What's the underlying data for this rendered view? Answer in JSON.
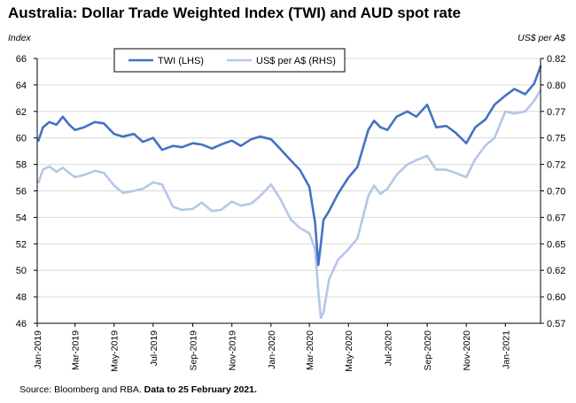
{
  "title": "Australia: Dollar Trade Weighted Index (TWI) and AUD spot rate",
  "left_unit": "Index",
  "right_unit": "US$ per A$",
  "source": {
    "prefix": "Source: Bloomberg and RBA.",
    "note": "Data to 25 February 2021."
  },
  "colors": {
    "twi": "#4472c4",
    "aud": "#b4c7e7",
    "grid": "#d9d9d9",
    "axis": "#000000"
  },
  "chart_data": {
    "type": "line",
    "grid": "horizontal",
    "legend_position": "top-center",
    "y_left": {
      "label": "Index",
      "range": [
        46,
        66
      ],
      "ticks": [
        "46",
        "48",
        "50",
        "52",
        "54",
        "56",
        "58",
        "60",
        "62",
        "64",
        "66"
      ]
    },
    "y_right": {
      "label": "US$ per A$",
      "range": [
        0.57,
        0.82
      ],
      "ticks": [
        "0.57",
        "0.60",
        "0.62",
        "0.65",
        "0.67",
        "0.70",
        "0.72",
        "0.75",
        "0.77",
        "0.80",
        "0.82"
      ]
    },
    "x_range": [
      "2019-01-01",
      "2021-02-25"
    ],
    "x_ticks": [
      "Jan-2019",
      "Mar-2019",
      "May-2019",
      "Jul-2019",
      "Sep-2019",
      "Nov-2019",
      "Jan-2020",
      "Mar-2020",
      "May-2020",
      "Jul-2020",
      "Sep-2020",
      "Nov-2020",
      "Jan-2021"
    ],
    "series": [
      {
        "name": "TWI (LHS)",
        "axis": "left",
        "x": [
          "2019-01-03",
          "2019-01-10",
          "2019-01-20",
          "2019-01-31",
          "2019-02-10",
          "2019-02-20",
          "2019-03-01",
          "2019-03-15",
          "2019-04-01",
          "2019-04-15",
          "2019-05-01",
          "2019-05-15",
          "2019-06-01",
          "2019-06-15",
          "2019-07-01",
          "2019-07-15",
          "2019-08-01",
          "2019-08-15",
          "2019-09-01",
          "2019-09-15",
          "2019-10-01",
          "2019-10-15",
          "2019-11-01",
          "2019-11-15",
          "2019-12-01",
          "2019-12-15",
          "2020-01-01",
          "2020-01-15",
          "2020-02-01",
          "2020-02-15",
          "2020-03-01",
          "2020-03-10",
          "2020-03-15",
          "2020-03-19",
          "2020-03-23",
          "2020-04-01",
          "2020-04-15",
          "2020-05-01",
          "2020-05-15",
          "2020-06-01",
          "2020-06-10",
          "2020-06-20",
          "2020-07-01",
          "2020-07-15",
          "2020-08-01",
          "2020-08-15",
          "2020-09-01",
          "2020-09-15",
          "2020-10-01",
          "2020-10-15",
          "2020-11-01",
          "2020-11-15",
          "2020-12-01",
          "2020-12-15",
          "2021-01-01",
          "2021-01-15",
          "2021-02-01",
          "2021-02-15",
          "2021-02-25"
        ],
        "y": [
          59.8,
          60.8,
          61.2,
          61.0,
          61.6,
          61.0,
          60.6,
          60.8,
          61.2,
          61.1,
          60.3,
          60.1,
          60.3,
          59.7,
          60.0,
          59.1,
          59.4,
          59.3,
          59.6,
          59.5,
          59.2,
          59.5,
          59.8,
          59.4,
          59.9,
          60.1,
          59.9,
          59.2,
          58.3,
          57.6,
          56.3,
          53.6,
          50.4,
          52.0,
          53.8,
          54.5,
          55.8,
          57.0,
          57.8,
          60.6,
          61.3,
          60.8,
          60.6,
          61.6,
          62.0,
          61.6,
          62.5,
          60.8,
          60.9,
          60.4,
          59.6,
          60.8,
          61.4,
          62.5,
          63.2,
          63.7,
          63.3,
          64.1,
          65.4
        ]
      },
      {
        "name": "US$ per A$ (RHS)",
        "axis": "right",
        "x": [
          "2019-01-03",
          "2019-01-10",
          "2019-01-20",
          "2019-01-31",
          "2019-02-10",
          "2019-02-20",
          "2019-03-01",
          "2019-03-15",
          "2019-04-01",
          "2019-04-15",
          "2019-05-01",
          "2019-05-15",
          "2019-06-01",
          "2019-06-15",
          "2019-07-01",
          "2019-07-15",
          "2019-08-01",
          "2019-08-15",
          "2019-09-01",
          "2019-09-15",
          "2019-10-01",
          "2019-10-15",
          "2019-11-01",
          "2019-11-15",
          "2019-12-01",
          "2019-12-15",
          "2020-01-01",
          "2020-01-15",
          "2020-02-01",
          "2020-02-15",
          "2020-03-01",
          "2020-03-10",
          "2020-03-15",
          "2020-03-19",
          "2020-03-23",
          "2020-04-01",
          "2020-04-15",
          "2020-05-01",
          "2020-05-15",
          "2020-06-01",
          "2020-06-10",
          "2020-06-20",
          "2020-07-01",
          "2020-07-15",
          "2020-08-01",
          "2020-08-15",
          "2020-09-01",
          "2020-09-15",
          "2020-10-01",
          "2020-10-15",
          "2020-11-01",
          "2020-11-15",
          "2020-12-01",
          "2020-12-15",
          "2021-01-01",
          "2021-01-15",
          "2021-02-01",
          "2021-02-15",
          "2021-02-25"
        ],
        "y": [
          0.703,
          0.715,
          0.718,
          0.713,
          0.717,
          0.712,
          0.708,
          0.71,
          0.714,
          0.712,
          0.7,
          0.693,
          0.695,
          0.697,
          0.703,
          0.701,
          0.68,
          0.677,
          0.678,
          0.684,
          0.676,
          0.677,
          0.685,
          0.681,
          0.683,
          0.69,
          0.701,
          0.688,
          0.668,
          0.66,
          0.655,
          0.64,
          0.6,
          0.575,
          0.58,
          0.612,
          0.63,
          0.64,
          0.65,
          0.69,
          0.7,
          0.692,
          0.697,
          0.71,
          0.72,
          0.724,
          0.728,
          0.715,
          0.715,
          0.712,
          0.708,
          0.725,
          0.738,
          0.745,
          0.77,
          0.768,
          0.77,
          0.78,
          0.79
        ]
      }
    ]
  }
}
